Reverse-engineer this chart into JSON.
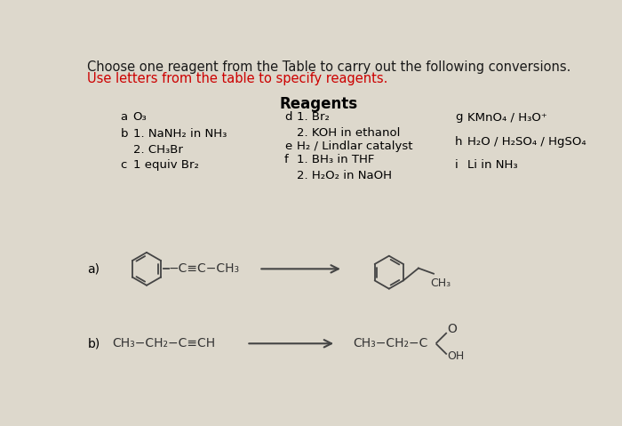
{
  "background_color": "#ddd8cc",
  "title_line1": "Choose one reagent from the Table to carry out the following conversions.",
  "title_line2": "Use letters from the table to specify reagents.",
  "title_color": "#1a1a1a",
  "title_line2_color": "#cc0000",
  "reagents_title": "Reagents",
  "font_size_title": 10.5,
  "font_size_reagents": 9.5,
  "reagent_data": {
    "a": {
      "letter": "a",
      "text": "O₃"
    },
    "b": {
      "letter": "b",
      "text": "1. NaNH₂ in NH₃\n2. CH₃Br"
    },
    "c": {
      "letter": "c",
      "text": "1 equiv Br₂"
    },
    "d": {
      "letter": "d",
      "text": "1. Br₂\n2. KOH in ethanol"
    },
    "e": {
      "letter": "e",
      "text": "H₂ / Lindlar catalyst"
    },
    "f": {
      "letter": "f",
      "text": "1. BH₃ in THF\n2. H₂O₂ in NaOH"
    },
    "g": {
      "letter": "g",
      "text": "KMnO₄ / H₃O⁺"
    },
    "h": {
      "letter": "h",
      "text": "H₂O / H₂SO₄ / HgSO₄"
    },
    "i": {
      "letter": "i",
      "text": "Li in NH₃"
    }
  }
}
